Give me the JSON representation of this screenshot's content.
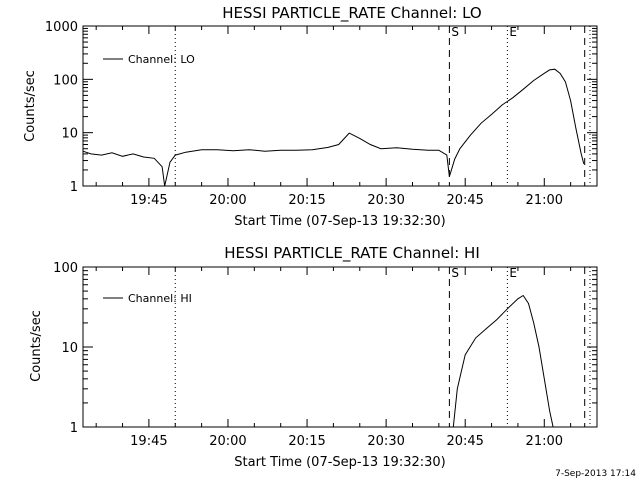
{
  "footer_stamp": "7-Sep-2013 17:14",
  "colors": {
    "background": "#ffffff",
    "foreground": "#000000"
  },
  "chart_data": [
    {
      "type": "line",
      "title": "HESSI PARTICLE_RATE Channel: LO",
      "xlabel": "Start Time (07-Sep-13 19:32:30)",
      "ylabel": "Counts/sec",
      "yscale": "log",
      "ylim": [
        1,
        1000
      ],
      "xlim": [
        "19:32:30",
        "21:10:00"
      ],
      "x_ticks": [
        "19:45",
        "20:00",
        "20:15",
        "20:30",
        "20:45",
        "21:00"
      ],
      "y_ticks": [
        "1",
        "10",
        "100",
        "1000"
      ],
      "legend": {
        "position": "top-left",
        "label": "Channel: LO"
      },
      "markers": [
        {
          "label": "S",
          "time": "20:42:00",
          "style": "dashed"
        },
        {
          "label": "E",
          "time": "20:53:00",
          "style": "dotted"
        },
        {
          "style": "dotted",
          "time": "19:50:00"
        },
        {
          "style": "dashed",
          "time": "21:07:40"
        },
        {
          "style": "dotted",
          "time": "21:08:40"
        }
      ],
      "series": [
        {
          "name": "Channel: LO",
          "x": [
            "19:32:30",
            "19:34:00",
            "19:36:00",
            "19:38:00",
            "19:40:00",
            "19:42:00",
            "19:44:00",
            "19:46:00",
            "19:47:30",
            "19:48:00",
            "19:49:00",
            "19:50:00",
            "19:52:00",
            "19:55:00",
            "19:58:00",
            "20:01:00",
            "20:04:00",
            "20:07:00",
            "20:10:00",
            "20:13:00",
            "20:16:00",
            "20:19:00",
            "20:21:00",
            "20:23:00",
            "20:25:00",
            "20:27:00",
            "20:29:00",
            "20:32:00",
            "20:35:00",
            "20:38:00",
            "20:40:00",
            "20:41:30",
            "20:42:00",
            "20:43:00",
            "20:44:00",
            "20:46:00",
            "20:48:00",
            "20:50:00",
            "20:52:00",
            "20:54:00",
            "20:56:00",
            "20:58:00",
            "21:00:00",
            "21:01:00",
            "21:02:00",
            "21:03:00",
            "21:04:00",
            "21:05:00",
            "21:06:00",
            "21:07:00",
            "21:07:30"
          ],
          "y": [
            4.5,
            4.0,
            3.8,
            4.2,
            3.6,
            4.0,
            3.5,
            3.3,
            2.3,
            1.0,
            2.8,
            3.8,
            4.3,
            4.8,
            4.8,
            4.6,
            4.8,
            4.5,
            4.7,
            4.7,
            4.8,
            5.3,
            6.0,
            9.8,
            7.8,
            6.0,
            5.0,
            5.2,
            4.9,
            4.7,
            4.7,
            3.8,
            1.5,
            3.2,
            5.0,
            9.0,
            15.0,
            22.0,
            33.0,
            45.0,
            65.0,
            95.0,
            130.0,
            150.0,
            155.0,
            130.0,
            90.0,
            40.0,
            12.0,
            4.0,
            2.6
          ]
        }
      ]
    },
    {
      "type": "line",
      "title": "HESSI PARTICLE_RATE Channel: HI",
      "xlabel": "Start Time (07-Sep-13 19:32:30)",
      "ylabel": "Counts/sec",
      "yscale": "log",
      "ylim": [
        1,
        100
      ],
      "xlim": [
        "19:32:30",
        "21:10:00"
      ],
      "x_ticks": [
        "19:45",
        "20:00",
        "20:15",
        "20:30",
        "20:45",
        "21:00"
      ],
      "y_ticks": [
        "1",
        "10",
        "100"
      ],
      "legend": {
        "position": "top-left",
        "label": "Channel: HI"
      },
      "markers": [
        {
          "label": "S",
          "time": "20:42:00",
          "style": "dashed"
        },
        {
          "label": "E",
          "time": "20:53:00",
          "style": "dotted"
        },
        {
          "style": "dotted",
          "time": "19:50:00"
        },
        {
          "style": "dashed",
          "time": "21:07:40"
        },
        {
          "style": "dotted",
          "time": "21:08:40"
        }
      ],
      "series": [
        {
          "name": "Channel: HI",
          "x": [
            "20:42:45",
            "20:43:30",
            "20:45:00",
            "20:47:00",
            "20:49:00",
            "20:51:00",
            "20:53:00",
            "20:55:00",
            "20:56:00",
            "20:57:00",
            "20:58:00",
            "20:59:00",
            "21:00:00",
            "21:01:00",
            "21:01:40"
          ],
          "y": [
            1.0,
            3.0,
            8.0,
            13.0,
            17.0,
            22.0,
            30.0,
            40.0,
            44.0,
            35.0,
            20.0,
            10.0,
            4.0,
            1.6,
            1.0
          ]
        }
      ]
    }
  ]
}
